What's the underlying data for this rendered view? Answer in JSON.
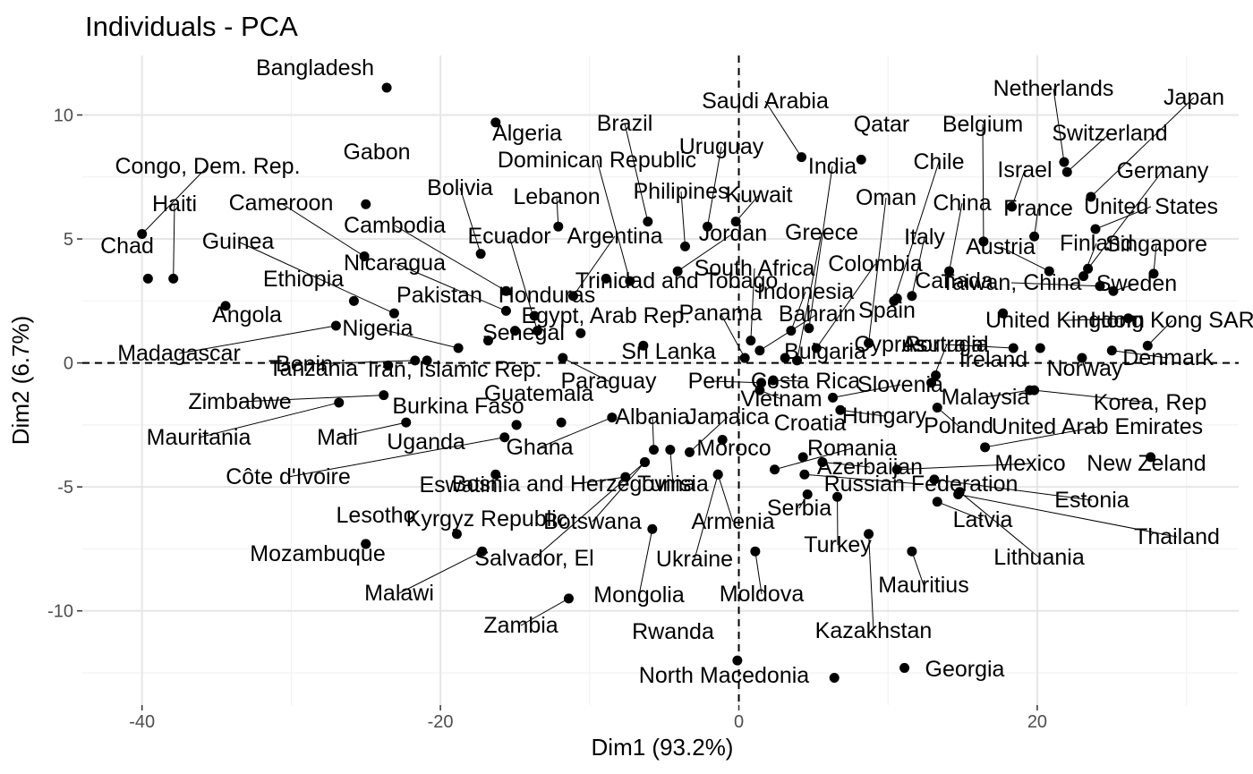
{
  "chart_data": {
    "type": "scatter",
    "title": "Individuals - PCA",
    "xlabel": "Dim1 (93.2%)",
    "ylabel": "Dim2 (6.7%)",
    "xlim": [
      -44,
      33.5
    ],
    "ylim": [
      -13.8,
      12.4
    ],
    "xticks": [
      -40,
      -20,
      0,
      20
    ],
    "yticks": [
      10,
      5,
      0,
      -5,
      -10
    ],
    "grid": true,
    "reference_lines": {
      "x": 0,
      "y": 0,
      "style": "dashed"
    },
    "points": [
      {
        "name": "Bangladesh",
        "x": -23.6,
        "y": 11.1
      },
      {
        "name": "Algeria",
        "x": -16.3,
        "y": 9.7
      },
      {
        "name": "Gabon",
        "x": -25.0,
        "y": 6.4
      },
      {
        "name": "Congo, Dem. Rep.",
        "x": -40.0,
        "y": 5.2
      },
      {
        "name": "Haiti",
        "x": -37.9,
        "y": 3.4
      },
      {
        "name": "Chad",
        "x": -39.6,
        "y": 3.4
      },
      {
        "name": "Cameroon",
        "x": -25.1,
        "y": 4.3
      },
      {
        "name": "Bolivia",
        "x": -17.3,
        "y": 4.4
      },
      {
        "name": "Guinea",
        "x": -23.1,
        "y": 2.0
      },
      {
        "name": "Angola",
        "x": -34.4,
        "y": 2.3
      },
      {
        "name": "Ethiopia",
        "x": -25.8,
        "y": 2.5
      },
      {
        "name": "Madagascar",
        "x": -27.0,
        "y": 1.5
      },
      {
        "name": "Nigeria",
        "x": -18.8,
        "y": 0.6
      },
      {
        "name": "Benin",
        "x": -21.7,
        "y": 0.1
      },
      {
        "name": "Tanzania",
        "x": -23.5,
        "y": -0.1
      },
      {
        "name": "Zimbabwe",
        "x": -23.8,
        "y": -1.3
      },
      {
        "name": "Mauritania",
        "x": -26.8,
        "y": -1.6
      },
      {
        "name": "Mali",
        "x": -22.3,
        "y": -2.4
      },
      {
        "name": "Burkina Faso",
        "x": -14.9,
        "y": -2.5
      },
      {
        "name": "Uganda",
        "x": -14.9,
        "y": -2.5
      },
      {
        "name": "Côte d'Ivoire",
        "x": -15.7,
        "y": -3.0
      },
      {
        "name": "Eswatini",
        "x": -16.3,
        "y": -4.5
      },
      {
        "name": "Lesotho",
        "x": -25.0,
        "y": -7.3
      },
      {
        "name": "Kyrgyz Republic",
        "x": -18.9,
        "y": -6.9
      },
      {
        "name": "Malawi",
        "x": -17.2,
        "y": -7.6
      },
      {
        "name": "Mozambuque",
        "x": -25.0,
        "y": -7.3
      },
      {
        "name": "Zambia",
        "x": -11.4,
        "y": -9.5
      },
      {
        "name": "Cambodia",
        "x": -15.6,
        "y": 2.9
      },
      {
        "name": "Nicaragua",
        "x": -15.6,
        "y": 2.1
      },
      {
        "name": "Pakistan",
        "x": -15.0,
        "y": 1.3
      },
      {
        "name": "Senegal",
        "x": -16.8,
        "y": 0.9
      },
      {
        "name": "Iran, Islamic Rep.",
        "x": -20.9,
        "y": 0.1
      },
      {
        "name": "Egypt, Arab Rep.",
        "x": -10.6,
        "y": 1.2
      },
      {
        "name": "Honduras",
        "x": -13.7,
        "y": 1.9
      },
      {
        "name": "Ecuador",
        "x": -13.5,
        "y": 1.3
      },
      {
        "name": "Lebanon",
        "x": -12.1,
        "y": 5.5
      },
      {
        "name": "Argentina",
        "x": -11.1,
        "y": 2.7
      },
      {
        "name": "Trinidad and Tobago",
        "x": -8.9,
        "y": 3.4
      },
      {
        "name": "Dominican Republic",
        "x": -7.3,
        "y": 3.3
      },
      {
        "name": "Brazil",
        "x": -6.1,
        "y": 5.7
      },
      {
        "name": "Philipines",
        "x": -3.6,
        "y": 4.7
      },
      {
        "name": "Jordan",
        "x": -4.1,
        "y": 3.7
      },
      {
        "name": "Uruguay",
        "x": -2.1,
        "y": 5.5
      },
      {
        "name": "Kuwait",
        "x": -0.2,
        "y": 5.7
      },
      {
        "name": "Saudi Arabia",
        "x": 4.2,
        "y": 8.3
      },
      {
        "name": "Qatar",
        "x": 8.2,
        "y": 8.2
      },
      {
        "name": "Sri Lanka",
        "x": -6.4,
        "y": 0.7
      },
      {
        "name": "Paraguay",
        "x": -11.8,
        "y": 0.2
      },
      {
        "name": "Guatemala",
        "x": -11.9,
        "y": -2.4
      },
      {
        "name": "Ghana",
        "x": -8.5,
        "y": -2.2
      },
      {
        "name": "Albania",
        "x": -5.7,
        "y": -3.5
      },
      {
        "name": "Jamaica",
        "x": -3.3,
        "y": -3.6
      },
      {
        "name": "Bosnia and Herzegovina",
        "x": -7.6,
        "y": -4.6
      },
      {
        "name": "Tunisia",
        "x": -4.6,
        "y": -3.5
      },
      {
        "name": "Botswana",
        "x": -6.3,
        "y": -4.0
      },
      {
        "name": "Salvador, El",
        "x": -6.3,
        "y": -4.0
      },
      {
        "name": "Mongolia",
        "x": -5.8,
        "y": -6.7
      },
      {
        "name": "Moroco",
        "x": -1.1,
        "y": -3.1
      },
      {
        "name": "Armenia",
        "x": -1.4,
        "y": -4.5
      },
      {
        "name": "Ukraine",
        "x": -1.4,
        "y": -4.5
      },
      {
        "name": "Moldova",
        "x": 1.1,
        "y": -7.6
      },
      {
        "name": "Rwanda",
        "x": -0.1,
        "y": -12.0
      },
      {
        "name": "North Macedonia",
        "x": 6.4,
        "y": -12.7
      },
      {
        "name": "Georgia",
        "x": 11.1,
        "y": -12.3
      },
      {
        "name": "Kazakhstan",
        "x": 8.7,
        "y": -6.9
      },
      {
        "name": "Mauritius",
        "x": 11.6,
        "y": -7.6
      },
      {
        "name": "Turkey",
        "x": 6.6,
        "y": -5.4
      },
      {
        "name": "Serbia",
        "x": 4.6,
        "y": -5.3
      },
      {
        "name": "Russian Federation",
        "x": 4.4,
        "y": -4.5
      },
      {
        "name": "Azerbaijan",
        "x": 5.6,
        "y": -4.0
      },
      {
        "name": "Romania",
        "x": 2.4,
        "y": -4.3
      },
      {
        "name": "Croatia",
        "x": 4.3,
        "y": -3.8
      },
      {
        "name": "Hungary",
        "x": 6.8,
        "y": -1.9
      },
      {
        "name": "Vietnam",
        "x": 1.4,
        "y": -1.1
      },
      {
        "name": "Peru",
        "x": 1.5,
        "y": -0.8
      },
      {
        "name": "Costa Rica",
        "x": 2.3,
        "y": -0.7
      },
      {
        "name": "Slovenia",
        "x": 6.3,
        "y": -1.4
      },
      {
        "name": "Bulgaria",
        "x": 3.1,
        "y": 0.2
      },
      {
        "name": "Panama",
        "x": 0.4,
        "y": 0.2
      },
      {
        "name": "Bahrain",
        "x": 1.4,
        "y": 0.5
      },
      {
        "name": "South Africa",
        "x": 0.8,
        "y": 0.9
      },
      {
        "name": "Indonesia",
        "x": 3.5,
        "y": 1.3
      },
      {
        "name": "Greece",
        "x": 3.9,
        "y": 0.1
      },
      {
        "name": "Colombia",
        "x": 5.2,
        "y": 0.6
      },
      {
        "name": "India",
        "x": 4.7,
        "y": 1.4
      },
      {
        "name": "Oman",
        "x": 8.7,
        "y": 0.8
      },
      {
        "name": "Chile",
        "x": 10.4,
        "y": 2.5
      },
      {
        "name": "Italy",
        "x": 11.6,
        "y": 2.7
      },
      {
        "name": "Spain",
        "x": 10.6,
        "y": 2.6
      },
      {
        "name": "Canada",
        "x": 17.7,
        "y": 2.0
      },
      {
        "name": "China",
        "x": 14.1,
        "y": 3.7
      },
      {
        "name": "Belgium",
        "x": 16.4,
        "y": 4.9
      },
      {
        "name": "Israel",
        "x": 18.3,
        "y": 6.3
      },
      {
        "name": "Netherlands",
        "x": 21.8,
        "y": 8.1
      },
      {
        "name": "Switzerland",
        "x": 22.0,
        "y": 7.7
      },
      {
        "name": "Japan",
        "x": 23.6,
        "y": 6.7
      },
      {
        "name": "France",
        "x": 19.8,
        "y": 5.1
      },
      {
        "name": "United States",
        "x": 23.9,
        "y": 5.4
      },
      {
        "name": "Germany",
        "x": 23.4,
        "y": 3.8
      },
      {
        "name": "Austria",
        "x": 20.8,
        "y": 3.7
      },
      {
        "name": "Finland",
        "x": 23.1,
        "y": 3.5
      },
      {
        "name": "Singapore",
        "x": 27.8,
        "y": 3.6
      },
      {
        "name": "Taiwan, China",
        "x": 24.2,
        "y": 3.1
      },
      {
        "name": "Sweden",
        "x": 25.1,
        "y": 2.9
      },
      {
        "name": "United Kingdom",
        "x": 26.1,
        "y": 1.8
      },
      {
        "name": "Hong Kong SAR",
        "x": 27.4,
        "y": 0.7
      },
      {
        "name": "Asutralia",
        "x": 18.4,
        "y": 0.6
      },
      {
        "name": "Cyprus",
        "x": 20.2,
        "y": 0.6
      },
      {
        "name": "Portugal",
        "x": 12.9,
        "y": -0.8
      },
      {
        "name": "Ireland",
        "x": 13.2,
        "y": -0.5
      },
      {
        "name": "Norway",
        "x": 23.0,
        "y": 0.2
      },
      {
        "name": "Denmark",
        "x": 25.0,
        "y": 0.5
      },
      {
        "name": "Korea, Rep",
        "x": 19.8,
        "y": -1.1
      },
      {
        "name": "Malaysia",
        "x": 19.5,
        "y": -1.1
      },
      {
        "name": "United Arab Emirates",
        "x": 16.5,
        "y": -3.4
      },
      {
        "name": "New Zeland",
        "x": 27.6,
        "y": -3.8
      },
      {
        "name": "Poland",
        "x": 13.3,
        "y": -1.8
      },
      {
        "name": "Mexico",
        "x": 10.6,
        "y": -4.3
      },
      {
        "name": "Estonia",
        "x": 13.1,
        "y": -4.7
      },
      {
        "name": "Thailand",
        "x": 14.7,
        "y": -5.3
      },
      {
        "name": "Latvia",
        "x": 13.3,
        "y": -5.6
      },
      {
        "name": "Lithuania",
        "x": 14.8,
        "y": -5.2
      }
    ]
  }
}
